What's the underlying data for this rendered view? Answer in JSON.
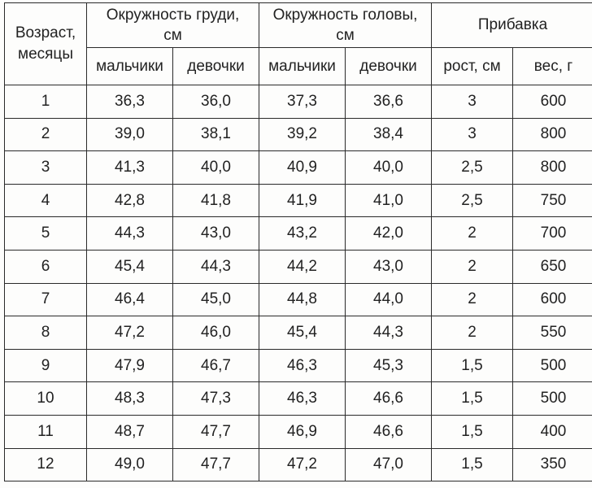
{
  "table": {
    "header": {
      "age_line1": "Возраст,",
      "age_line2": "месяцы",
      "chest_line1": "Окружность груди,",
      "chest_line2": "см",
      "head_line1": "Окружность головы,",
      "head_line2": "см",
      "gain": "Прибавка",
      "boys": "мальчики",
      "girls": "девочки",
      "height_gain": "рост, см",
      "weight_gain": "вес, г"
    },
    "rows": [
      {
        "age": "1",
        "chest_boys": "36,3",
        "chest_girls": "36,0",
        "head_boys": "37,3",
        "head_girls": "36,6",
        "height": "3",
        "weight": "600"
      },
      {
        "age": "2",
        "chest_boys": "39,0",
        "chest_girls": "38,1",
        "head_boys": "39,2",
        "head_girls": "38,4",
        "height": "3",
        "weight": "800"
      },
      {
        "age": "3",
        "chest_boys": "41,3",
        "chest_girls": "40,0",
        "head_boys": "40,9",
        "head_girls": "40,0",
        "height": "2,5",
        "weight": "800"
      },
      {
        "age": "4",
        "chest_boys": "42,8",
        "chest_girls": "41,8",
        "head_boys": "41,9",
        "head_girls": "41,0",
        "height": "2,5",
        "weight": "750"
      },
      {
        "age": "5",
        "chest_boys": "44,3",
        "chest_girls": "43,0",
        "head_boys": "43,2",
        "head_girls": "42,0",
        "height": "2",
        "weight": "700"
      },
      {
        "age": "6",
        "chest_boys": "45,4",
        "chest_girls": "44,3",
        "head_boys": "44,2",
        "head_girls": "43,0",
        "height": "2",
        "weight": "650"
      },
      {
        "age": "7",
        "chest_boys": "46,4",
        "chest_girls": "45,0",
        "head_boys": "44,8",
        "head_girls": "44,0",
        "height": "2",
        "weight": "600"
      },
      {
        "age": "8",
        "chest_boys": "47,2",
        "chest_girls": "46,0",
        "head_boys": "45,4",
        "head_girls": "44,3",
        "height": "2",
        "weight": "550"
      },
      {
        "age": "9",
        "chest_boys": "47,9",
        "chest_girls": "46,7",
        "head_boys": "46,3",
        "head_girls": "45,3",
        "height": "1,5",
        "weight": "500"
      },
      {
        "age": "10",
        "chest_boys": "48,3",
        "chest_girls": "47,3",
        "head_boys": "46,3",
        "head_girls": "46,6",
        "height": "1,5",
        "weight": "500"
      },
      {
        "age": "11",
        "chest_boys": "48,7",
        "chest_girls": "47,7",
        "head_boys": "46,9",
        "head_girls": "46,6",
        "height": "1,5",
        "weight": "400"
      },
      {
        "age": "12",
        "chest_boys": "49,0",
        "chest_girls": "47,7",
        "head_boys": "47,2",
        "head_girls": "47,0",
        "height": "1,5",
        "weight": "350"
      }
    ]
  }
}
